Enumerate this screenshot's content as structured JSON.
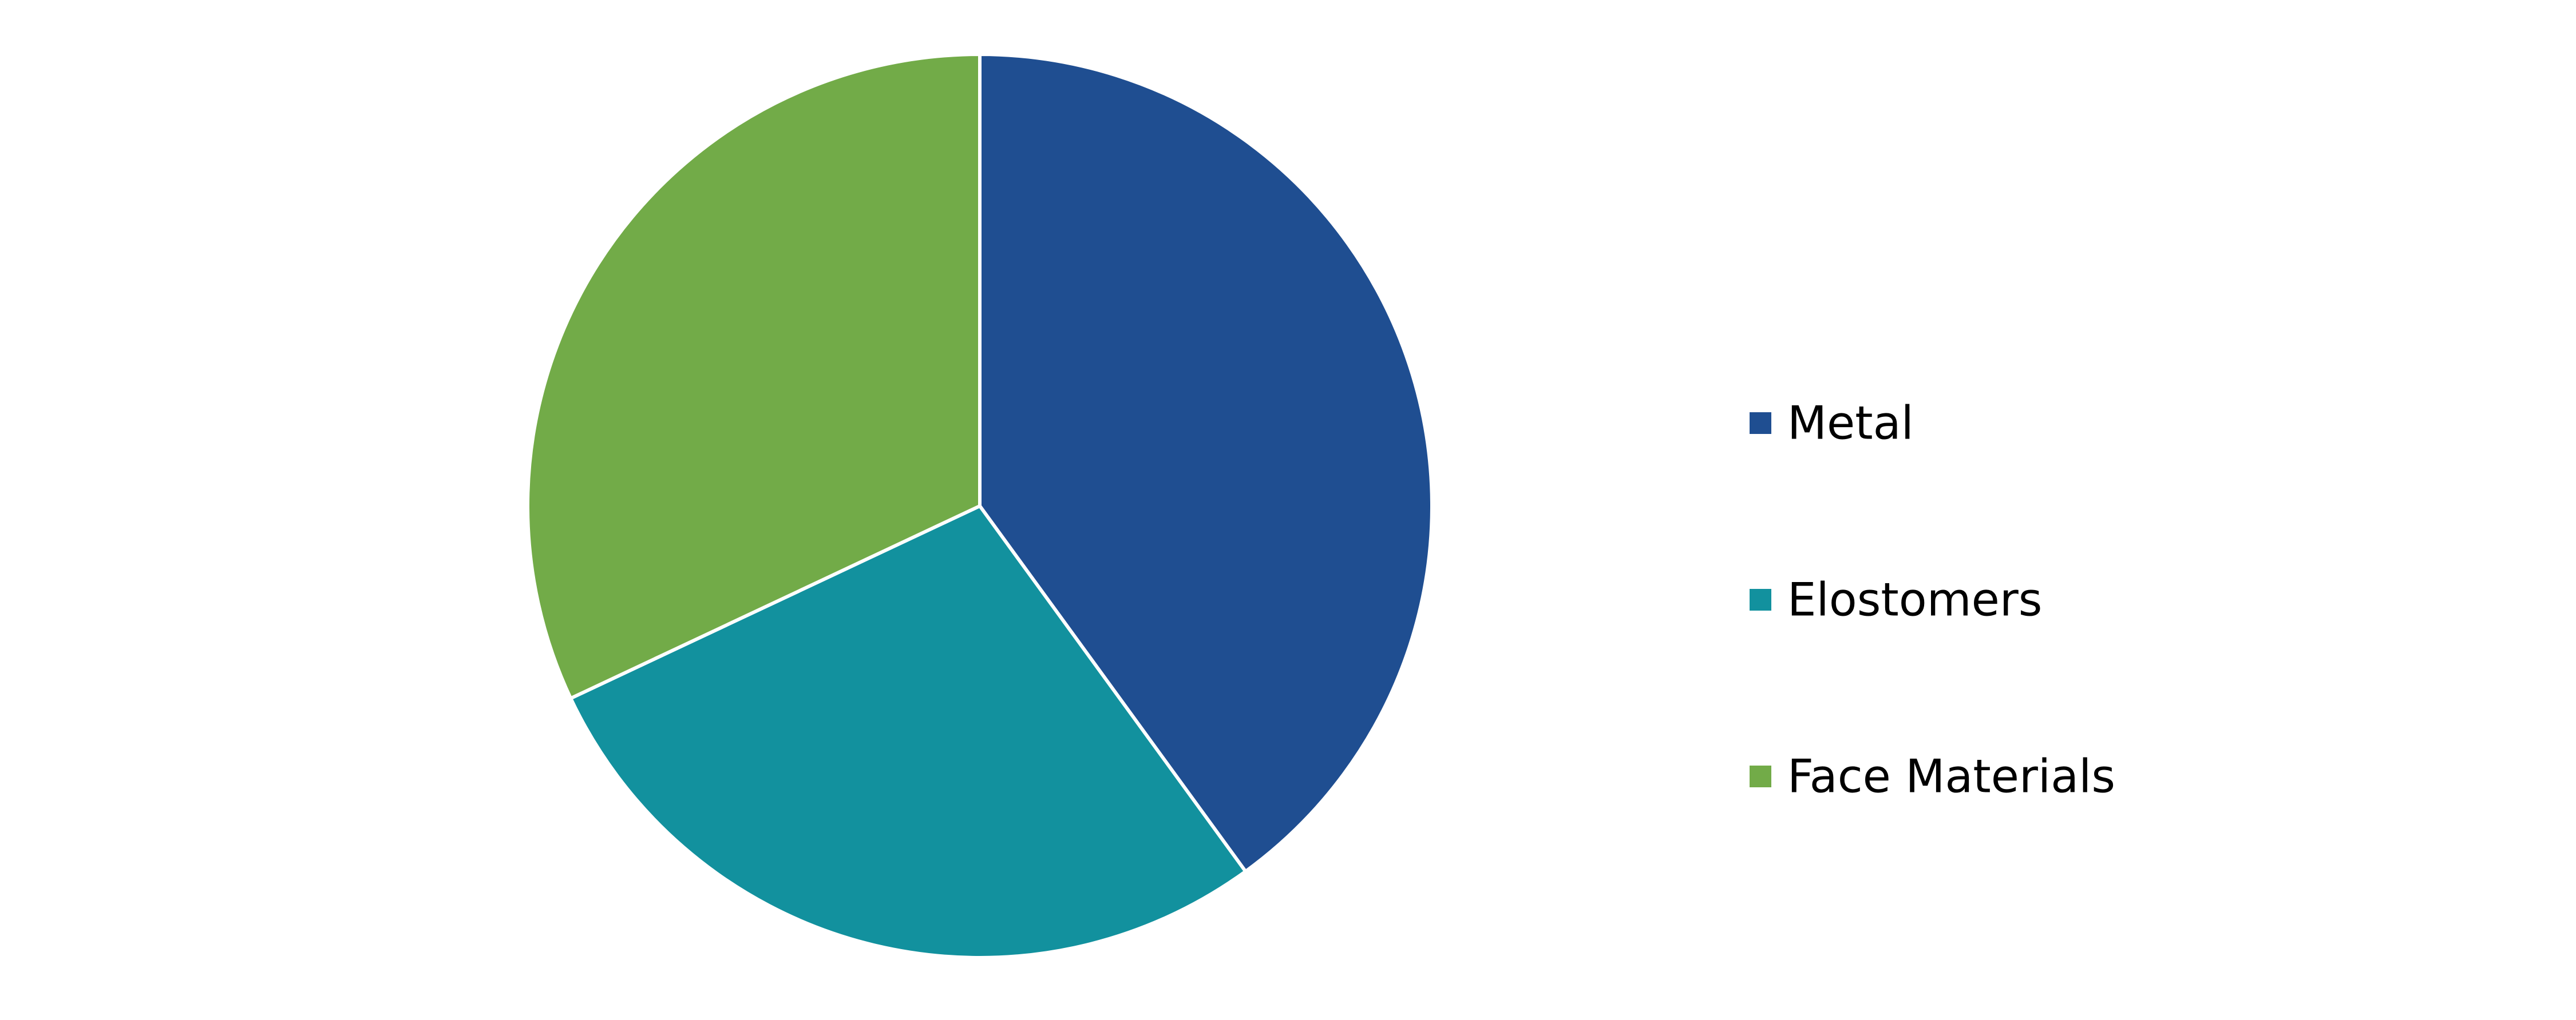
{
  "chart_data": {
    "type": "pie",
    "title": "",
    "categories": [
      "Metal",
      "Elostomers",
      "Face Materials"
    ],
    "values": [
      40,
      28,
      32
    ],
    "colors": [
      "#1f4e91",
      "#12919e",
      "#72ab48"
    ],
    "start_angle_deg": 0,
    "direction": "clockwise",
    "legend": {
      "placement": "right",
      "entries": [
        {
          "label": "Metal",
          "color": "#1f4e91"
        },
        {
          "label": "Elostomers",
          "color": "#12919e"
        },
        {
          "label": "Face Materials",
          "color": "#72ab48"
        }
      ]
    }
  }
}
